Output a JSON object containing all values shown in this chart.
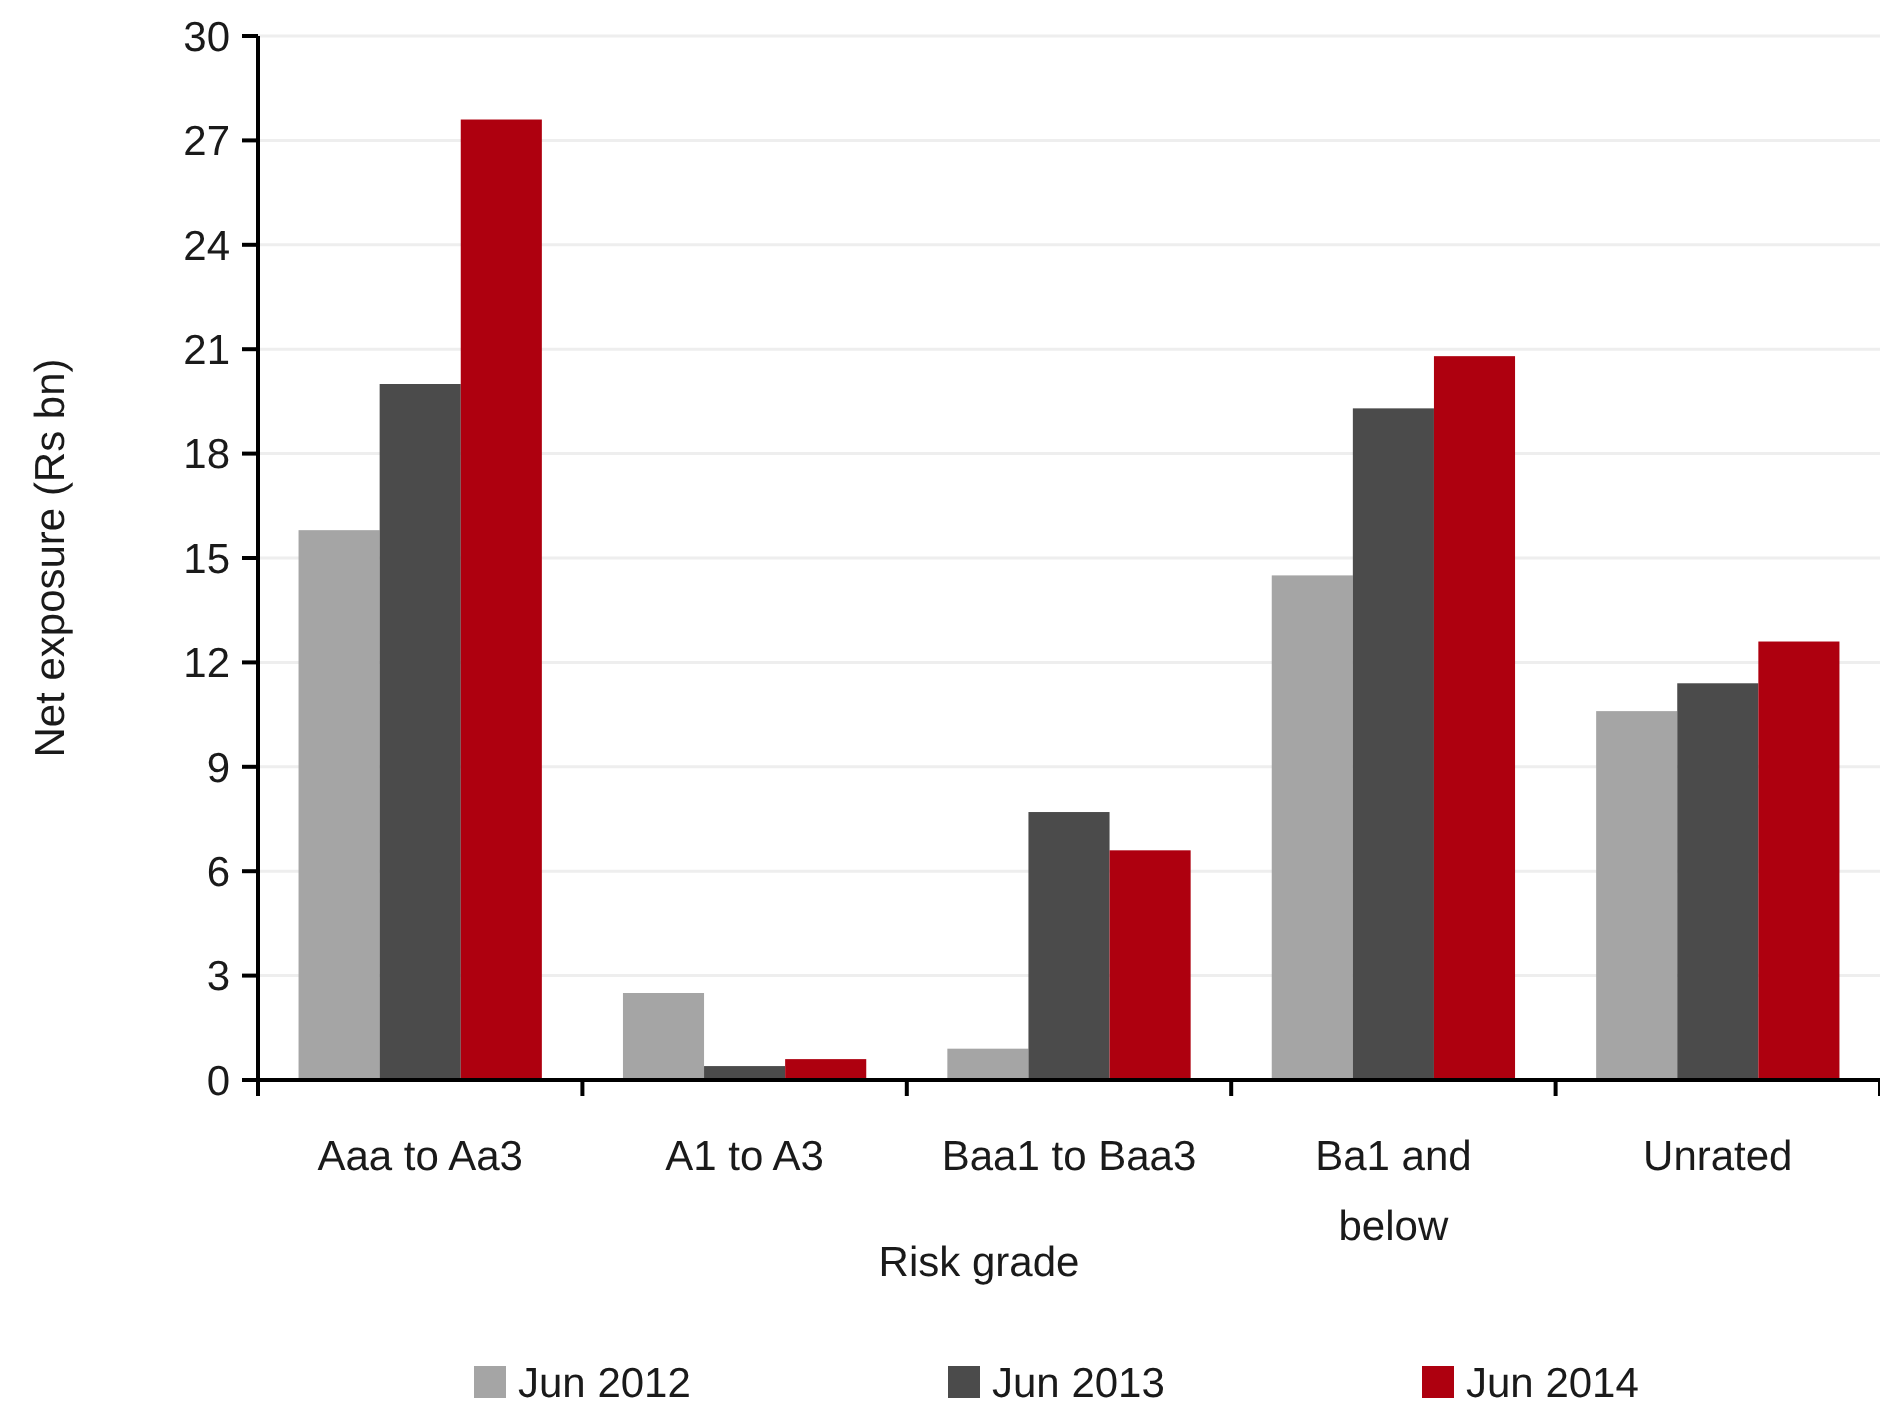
{
  "chart_data": {
    "type": "bar",
    "xlabel": "Risk grade",
    "ylabel": "Net exposure (Rs bn)",
    "categories": [
      "Aaa to Aa3",
      "A1 to A3",
      "Baa1 to Baa3",
      "Ba1 and below",
      "Unrated"
    ],
    "series": [
      {
        "name": "Jun 2012",
        "color": "#a5a5a5",
        "values": [
          15.8,
          2.5,
          0.9,
          14.5,
          10.6
        ]
      },
      {
        "name": "Jun 2013",
        "color": "#4b4b4b",
        "values": [
          20.0,
          0.4,
          7.7,
          19.3,
          11.4
        ]
      },
      {
        "name": "Jun 2014",
        "color": "#ae000f",
        "values": [
          27.6,
          0.6,
          6.6,
          20.8,
          12.6
        ]
      }
    ],
    "ylim": [
      0,
      30
    ],
    "yticks": [
      0,
      3,
      6,
      9,
      12,
      15,
      18,
      21,
      24,
      27,
      30
    ],
    "grid": "y",
    "legend": "bottom"
  }
}
